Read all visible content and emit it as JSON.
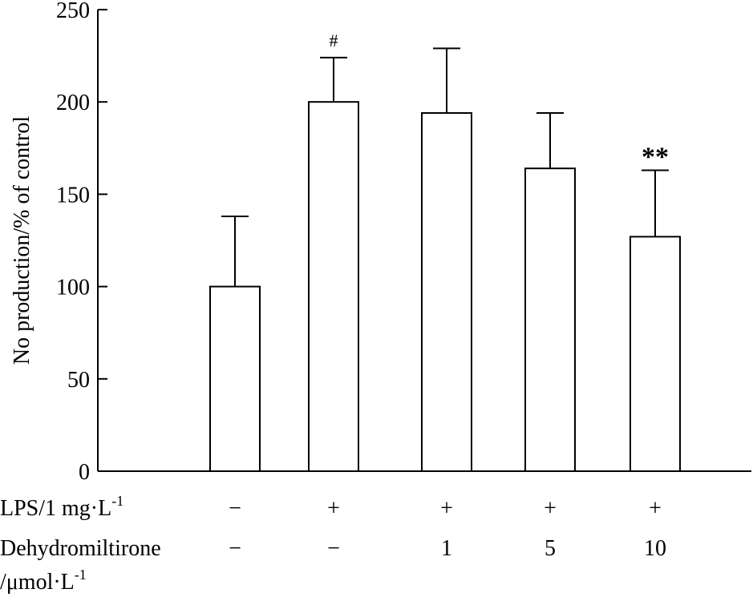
{
  "chart_data": {
    "type": "bar",
    "title": "",
    "ylabel": "No production/% of control",
    "ylim": [
      0,
      250
    ],
    "yticks": [
      0,
      50,
      100,
      150,
      200,
      250
    ],
    "grid": false,
    "bar_fill": "#ffffff",
    "bar_stroke": "#000000",
    "values": [
      100,
      200,
      194,
      164,
      127
    ],
    "errors": [
      38,
      24,
      35,
      30,
      36
    ],
    "annotations": [
      "",
      "#",
      "",
      "",
      "**"
    ],
    "rows": [
      {
        "label": "LPS/1 mg·L",
        "label_sup": "-1",
        "values": [
          "−",
          "+",
          "+",
          "+",
          "+"
        ]
      },
      {
        "label": "Dehydromiltirone",
        "label_line2": "/μmol·L",
        "label_line2_sup": "-1",
        "values": [
          "−",
          "−",
          "1",
          "5",
          "10"
        ]
      }
    ]
  }
}
